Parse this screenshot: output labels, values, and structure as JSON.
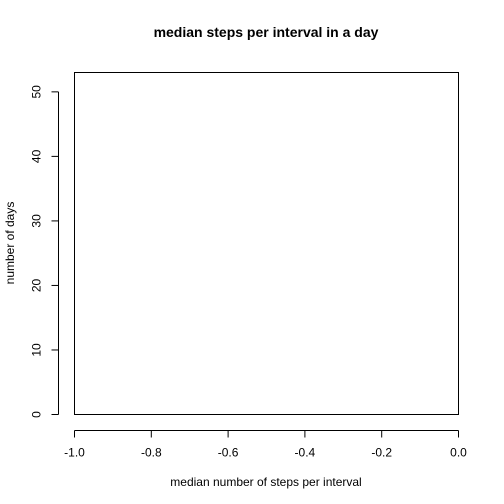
{
  "chart_data": {
    "type": "bar",
    "title": "median steps per interval in a day",
    "xlabel": "median number of steps per interval",
    "ylabel": "number of days",
    "xlim": [
      -1.0,
      0.0
    ],
    "ylim": [
      0,
      53
    ],
    "x_ticks": [
      -1.0,
      -0.8,
      -0.6,
      -0.4,
      -0.2,
      0.0
    ],
    "x_tick_labels": [
      "-1.0",
      "-0.8",
      "-0.6",
      "-0.4",
      "-0.2",
      "0.0"
    ],
    "y_ticks": [
      0,
      10,
      20,
      30,
      40,
      50
    ],
    "y_tick_labels": [
      "0",
      "10",
      "20",
      "30",
      "40",
      "50"
    ],
    "categories": [],
    "values": [],
    "grid": false,
    "legend": "none"
  }
}
